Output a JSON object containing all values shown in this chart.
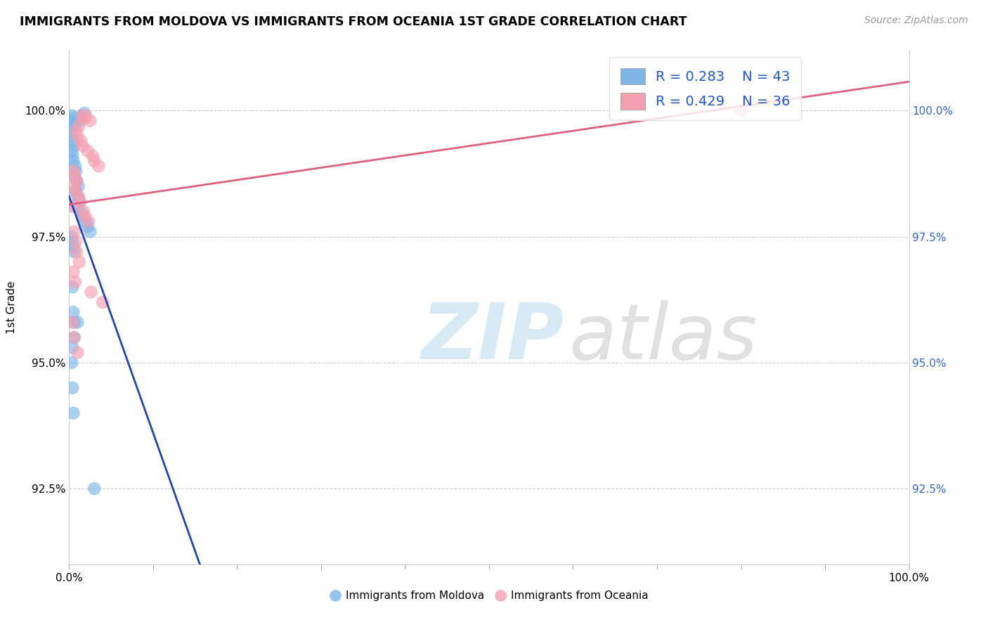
{
  "title": "IMMIGRANTS FROM MOLDOVA VS IMMIGRANTS FROM OCEANIA 1ST GRADE CORRELATION CHART",
  "source_text": "Source: ZipAtlas.com",
  "ylabel": "1st Grade",
  "legend_r1": "R = 0.283",
  "legend_n1": "N = 43",
  "legend_r2": "R = 0.429",
  "legend_n2": "N = 36",
  "moldova_color": "#7eb6e8",
  "oceania_color": "#f4a0b0",
  "moldova_line_color": "#2244aa",
  "oceania_line_color": "#e06080",
  "xlim": [
    0.0,
    100.0
  ],
  "ylim_bottom": 91.0,
  "ylim_top": 101.2,
  "y_ticks": [
    92.5,
    95.0,
    97.5,
    100.0
  ],
  "moldova_x": [
    0.3,
    0.4,
    0.5,
    0.6,
    0.4,
    0.3,
    0.2,
    0.5,
    0.6,
    0.3,
    0.4,
    0.5,
    0.7,
    0.8,
    0.6,
    1.5,
    1.8,
    1.3,
    0.9,
    1.1,
    0.7,
    1.0,
    1.2,
    0.8,
    1.4,
    1.6,
    2.0,
    2.2,
    2.5,
    0.3,
    0.4,
    0.5,
    0.6,
    0.4,
    0.5,
    0.6,
    0.3,
    0.4,
    0.5,
    0.6,
    0.4,
    1.0,
    3.0
  ],
  "moldova_y": [
    99.9,
    99.8,
    99.85,
    99.75,
    99.7,
    99.6,
    99.5,
    99.4,
    99.3,
    99.2,
    99.1,
    99.0,
    98.9,
    98.8,
    98.7,
    99.9,
    99.95,
    99.8,
    98.6,
    98.5,
    98.4,
    98.3,
    98.2,
    98.1,
    98.0,
    97.9,
    97.8,
    97.7,
    97.6,
    97.5,
    97.4,
    97.3,
    97.2,
    96.5,
    96.0,
    95.5,
    95.0,
    94.5,
    94.0,
    95.8,
    95.3,
    95.8,
    92.5
  ],
  "oceania_x": [
    1.5,
    2.0,
    2.5,
    1.8,
    1.2,
    0.8,
    1.0,
    1.4,
    1.6,
    2.2,
    2.8,
    3.0,
    3.5,
    0.5,
    0.7,
    0.9,
    0.6,
    0.8,
    1.1,
    1.3,
    0.4,
    1.7,
    1.9,
    2.3,
    0.6,
    0.8,
    0.9,
    1.2,
    0.5,
    0.7,
    2.6,
    4.0,
    80.0,
    0.4,
    0.6,
    1.0
  ],
  "oceania_y": [
    99.9,
    99.9,
    99.8,
    99.85,
    99.7,
    99.6,
    99.5,
    99.4,
    99.3,
    99.2,
    99.1,
    99.0,
    98.9,
    98.8,
    98.7,
    98.6,
    98.5,
    98.4,
    98.3,
    98.2,
    98.1,
    98.0,
    97.9,
    97.8,
    97.6,
    97.4,
    97.2,
    97.0,
    96.8,
    96.6,
    96.4,
    96.2,
    100.0,
    95.8,
    95.5,
    95.2
  ]
}
